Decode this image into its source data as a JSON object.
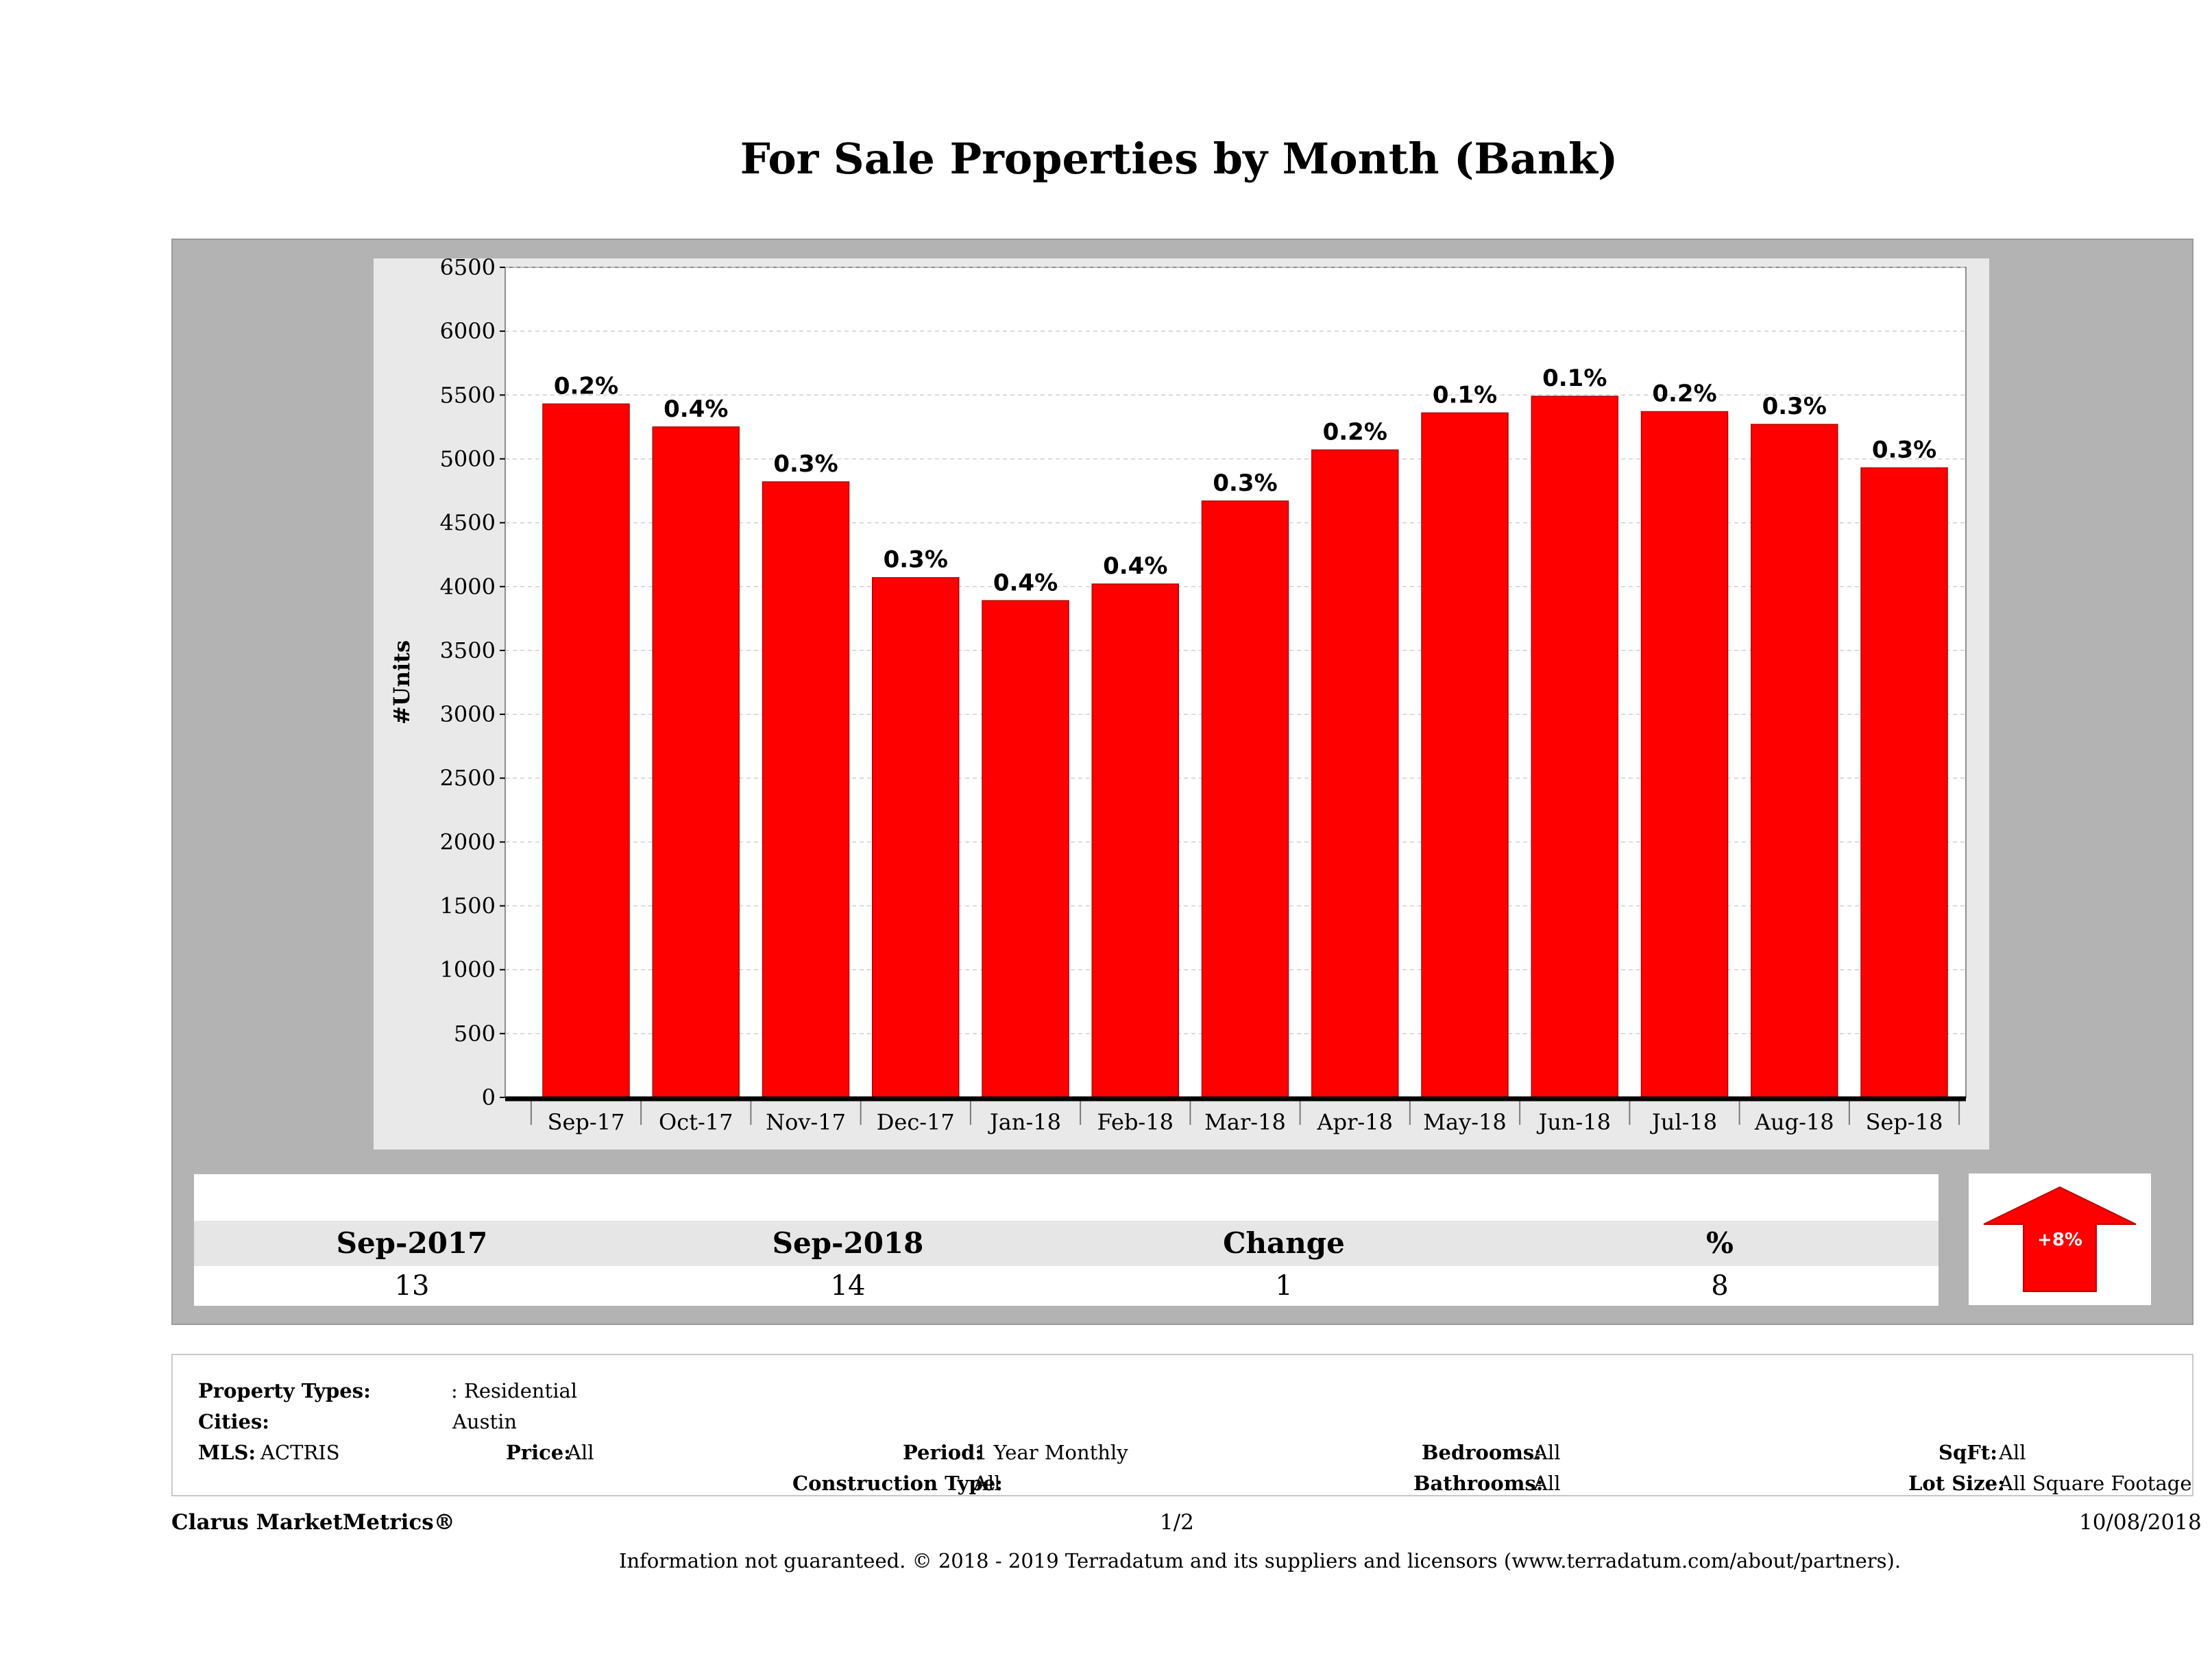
{
  "chart_data": {
    "type": "bar",
    "title": "For Sale Properties by Month (Bank)",
    "xlabel": "",
    "ylabel": "#Units",
    "ylim": [
      0,
      6500
    ],
    "yticks": [
      0,
      500,
      1000,
      1500,
      2000,
      2500,
      3000,
      3500,
      4000,
      4500,
      5000,
      5500,
      6000,
      6500
    ],
    "grid": true,
    "categories": [
      "Sep-17",
      "Oct-17",
      "Nov-17",
      "Dec-17",
      "Jan-18",
      "Feb-18",
      "Mar-18",
      "Apr-18",
      "May-18",
      "Jun-18",
      "Jul-18",
      "Aug-18",
      "Sep-18"
    ],
    "values": [
      5430,
      5250,
      4820,
      4070,
      3890,
      4020,
      4670,
      5070,
      5360,
      5490,
      5370,
      5270,
      4930
    ],
    "data_labels": [
      "0.2%",
      "0.4%",
      "0.3%",
      "0.3%",
      "0.4%",
      "0.4%",
      "0.3%",
      "0.2%",
      "0.1%",
      "0.1%",
      "0.2%",
      "0.3%",
      "0.3%"
    ],
    "bar_color": "#ff0000",
    "axis_color": "#000000"
  },
  "summary": {
    "headers": [
      "Sep-2017",
      "Sep-2018",
      "Change",
      "%"
    ],
    "values": [
      "13",
      "14",
      "1",
      "8"
    ],
    "badge": "+8%",
    "badge_icon": "up-arrow-icon",
    "badge_color": "#ff0000"
  },
  "filters": {
    "property_types_label": "Property Types:",
    "property_types_value": ": Residential",
    "cities_label": "Cities:",
    "cities_value": "Austin",
    "mls_label": "MLS:",
    "mls_value": "ACTRIS",
    "price_label": "Price:",
    "price_value": "All",
    "period_label": "Period:",
    "period_value": "1 Year Monthly",
    "construction_label": "Construction Type:",
    "construction_value": "All",
    "bedrooms_label": "Bedrooms:",
    "bedrooms_value": "All",
    "bathrooms_label": "Bathrooms:",
    "bathrooms_value": "All",
    "sqft_label": "SqFt:",
    "sqft_value": "All",
    "lotsize_label": "Lot Size:",
    "lotsize_value": "All Square Footage"
  },
  "footer": {
    "brand": "Clarus MarketMetrics®",
    "page": "1/2",
    "date": "10/08/2018",
    "disclaimer": "Information not guaranteed. © 2018 - 2019 Terradatum and its suppliers and licensors (www.terradatum.com/about/partners)."
  }
}
